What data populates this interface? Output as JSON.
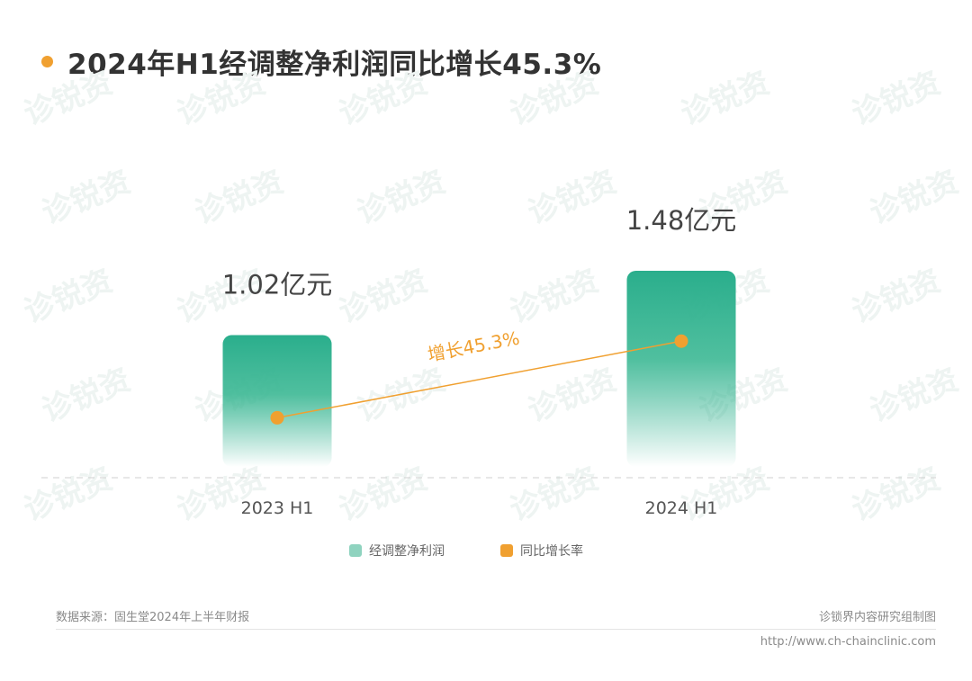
{
  "page_title": "2024年H1经调整净利润同比增长45.3%",
  "colors": {
    "accent_orange": "#f0a030",
    "bar_green": "#2aae8c",
    "bar_green_light": "#8fd3bf",
    "watermark": "#eef4f2"
  },
  "chart_data": {
    "type": "bar",
    "categories": [
      "2023 H1",
      "2024 H1"
    ],
    "series": [
      {
        "name": "经调整净利润",
        "kind": "bar",
        "values": [
          1.02,
          1.48
        ],
        "value_labels": [
          "1.02亿元",
          "1.48亿元"
        ],
        "color": "#2aae8c"
      },
      {
        "name": "同比增长率",
        "kind": "line",
        "color": "#f0a030"
      }
    ],
    "annotations": [
      "增长45.3%"
    ],
    "legend_position": "bottom",
    "grid": false
  },
  "watermark_text": "诊锐资",
  "footer": {
    "source": "数据来源：固生堂2024年上半年财报",
    "credit": "诊锁界内容研究组制图",
    "url": "http://www.ch-chainclinic.com"
  }
}
